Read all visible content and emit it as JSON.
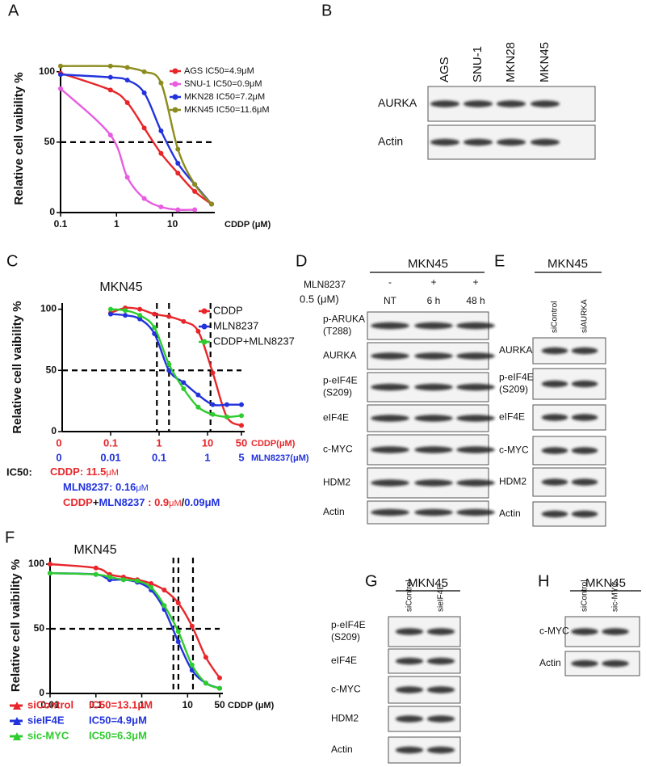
{
  "panel_labels": [
    "A",
    "B",
    "C",
    "D",
    "E",
    "F",
    "G",
    "H"
  ],
  "chart_data": [
    {
      "type": "line",
      "ylabel": "Relative cell vaibility %",
      "xlabel": "CDDP (μM)",
      "xscale": "log",
      "xlim": [
        0.1,
        50
      ],
      "xticks": [
        0.1,
        1,
        10
      ],
      "ylim": [
        0,
        105
      ],
      "yticks": [
        0,
        50,
        100
      ],
      "hline": 50,
      "legend": "top-right",
      "x": [
        0.1,
        0.78,
        1.56,
        3.13,
        6.25,
        12.5,
        25,
        50
      ],
      "series": [
        {
          "name": "AGS IC50=4.9μM",
          "color": "#e8262a",
          "values": [
            99,
            87,
            78,
            60,
            42,
            28,
            15,
            6
          ]
        },
        {
          "name": "SNU-1 IC50=0.9μM",
          "color": "#e85ce0",
          "values": [
            88,
            55,
            25,
            10,
            4,
            2,
            2,
            null
          ]
        },
        {
          "name": "MKN28 IC50=7.2μM",
          "color": "#2233dd",
          "values": [
            98,
            96,
            94,
            85,
            58,
            35,
            20,
            6
          ]
        },
        {
          "name": "MKN45 IC50=11.6μM",
          "color": "#8c8c1e",
          "values": [
            104,
            104,
            103,
            100,
            92,
            45,
            20,
            6
          ]
        }
      ]
    },
    {
      "type": "line",
      "title": "MKN45",
      "ylabel": "Relative cell vaibility %",
      "xscale": "log",
      "xlim": [
        0.01,
        50
      ],
      "x_origin_label": "0",
      "xticks": [
        0.1,
        1,
        10,
        50
      ],
      "xlabel": "CDDP(μM)",
      "xtick_color": "#e8262a",
      "x2lim": [
        0.001,
        5
      ],
      "x2_origin_label": "0",
      "x2ticks": [
        0.01,
        0.1,
        1,
        5
      ],
      "x2label": "MLN8237(μM)",
      "x2tick_color": "#2233dd",
      "ylim": [
        0,
        105
      ],
      "yticks": [
        0,
        50,
        100
      ],
      "hline": 50,
      "legend": "top-right",
      "vlines": [
        {
          "value": 0.9,
          "axis": "x"
        },
        {
          "value": 0.16,
          "axis": "x2"
        },
        {
          "value": 11.5,
          "axis": "x"
        }
      ],
      "series": [
        {
          "name": "CDDP",
          "color": "#e8262a",
          "x": [
            0.1,
            0.2,
            0.4,
            0.8,
            1.6,
            3.2,
            6.4,
            12.8,
            25,
            50
          ],
          "values": [
            97,
            101,
            100,
            96,
            94,
            90,
            82,
            48,
            12,
            5
          ]
        },
        {
          "name": "MLN8237",
          "color": "#2233dd",
          "axis": "x2",
          "x": [
            0.01,
            0.02,
            0.04,
            0.08,
            0.16,
            0.32,
            0.64,
            1.28,
            2.5,
            5
          ],
          "values": [
            96,
            95,
            92,
            80,
            50,
            40,
            30,
            22,
            22,
            22
          ]
        },
        {
          "name": "CDDP+MLN8237",
          "color": "#2ecc2e",
          "x": [
            0.1,
            0.2,
            0.4,
            0.8,
            1.6,
            3.2,
            6.4,
            12.8,
            25,
            50
          ],
          "values": [
            100,
            99,
            95,
            85,
            55,
            35,
            20,
            14,
            12,
            13
          ]
        }
      ],
      "ic50_title": "IC50:",
      "ic50_lines": [
        [
          {
            "text": "CDDP: 11.5",
            "color": "#e8262a"
          },
          {
            "text": "μM",
            "color": "#e8262a"
          }
        ],
        [
          {
            "text": "MLN8237: 0.16",
            "color": "#2233dd"
          },
          {
            "text": "μM",
            "color": "#2233dd"
          }
        ],
        [
          {
            "text": "CDDP",
            "color": "#e8262a"
          },
          {
            "text": "+",
            "color": "#111111"
          },
          {
            "text": "MLN8237",
            "color": "#2233dd"
          },
          {
            "text": " : 0.9",
            "color": "#e8262a"
          },
          {
            "text": "μM",
            "color": "#e8262a"
          },
          {
            "text": "/",
            "color": "#111111"
          },
          {
            "text": "0.09μM",
            "color": "#2233dd"
          }
        ]
      ]
    },
    {
      "type": "line",
      "title": "MKN45",
      "ylabel": "Relative cell vaibility %",
      "xlabel": "CDDP (μM)",
      "xscale": "log",
      "xlim": [
        0.01,
        50
      ],
      "xticks": [
        0.01,
        0.1,
        1,
        10,
        50
      ],
      "ylim": [
        0,
        105
      ],
      "yticks": [
        0,
        50,
        100
      ],
      "hline": 50,
      "legend": "bottom",
      "vlines": [
        {
          "value": 4.9,
          "axis": "x"
        },
        {
          "value": 6.3,
          "axis": "x"
        },
        {
          "value": 13.1,
          "axis": "x"
        }
      ],
      "x": [
        0.01,
        0.1,
        0.2,
        0.4,
        0.8,
        1.6,
        3.1,
        6.25,
        12.5,
        25,
        50
      ],
      "series": [
        {
          "name": "siControl",
          "ic50_label": "IC50=13.1μM",
          "color": "#e8262a",
          "values": [
            100,
            97,
            92,
            90,
            88,
            85,
            80,
            70,
            52,
            28,
            12
          ]
        },
        {
          "name": "sieIF4E",
          "ic50_label": "IC50=4.9μM",
          "color": "#2233dd",
          "values": [
            93,
            92,
            88,
            88,
            86,
            80,
            65,
            40,
            18,
            8,
            4
          ]
        },
        {
          "name": "sic-MYC",
          "ic50_label": "IC50=6.3μM",
          "color": "#2ecc2e",
          "values": [
            93,
            92,
            90,
            88,
            87,
            82,
            68,
            48,
            22,
            8,
            4
          ]
        }
      ]
    }
  ],
  "blots": [
    {
      "columns": [
        "AGS",
        "SNU-1",
        "MKN28",
        "MKN45"
      ],
      "rotated": true,
      "rows": [
        [
          "AURKA"
        ],
        [
          "Actin"
        ]
      ]
    },
    {
      "title": "MKN45",
      "treatment_label": "MLN8237",
      "dose_label": "0.5 (μM)",
      "treatment": [
        "-",
        "+",
        "+"
      ],
      "columns": [
        "NT",
        "6 h",
        "48 h"
      ],
      "rows": [
        [
          "p-ARUKA",
          "(T288)"
        ],
        [
          "AURKA"
        ],
        [
          "p-eIF4E",
          "(S209)"
        ],
        [
          "eIF4E"
        ],
        [
          "c-MYC"
        ],
        [
          "HDM2"
        ],
        [
          "Actin"
        ]
      ]
    },
    {
      "title": "MKN45",
      "columns": [
        "siControl",
        "siAURKA"
      ],
      "rotated": true,
      "rows": [
        [
          "AURKA"
        ],
        [
          "p-eIF4E",
          "(S209)"
        ],
        [
          "eIF4E"
        ],
        [
          "c-MYC"
        ],
        [
          "HDM2"
        ],
        [
          "Actin"
        ]
      ]
    },
    {
      "title": "MKN45",
      "columns": [
        "siControl",
        "sieIF4E"
      ],
      "rotated": true,
      "rows": [
        [
          "p-eIF4E",
          "(S209)"
        ],
        [
          "eIF4E"
        ],
        [
          "c-MYC"
        ],
        [
          "HDM2"
        ],
        [
          "Actin"
        ]
      ]
    },
    {
      "title": "MKN45",
      "columns": [
        "siControl",
        "sic-MYC"
      ],
      "rotated": true,
      "rows": [
        [
          "c-MYC"
        ],
        [
          "Actin"
        ]
      ]
    }
  ]
}
